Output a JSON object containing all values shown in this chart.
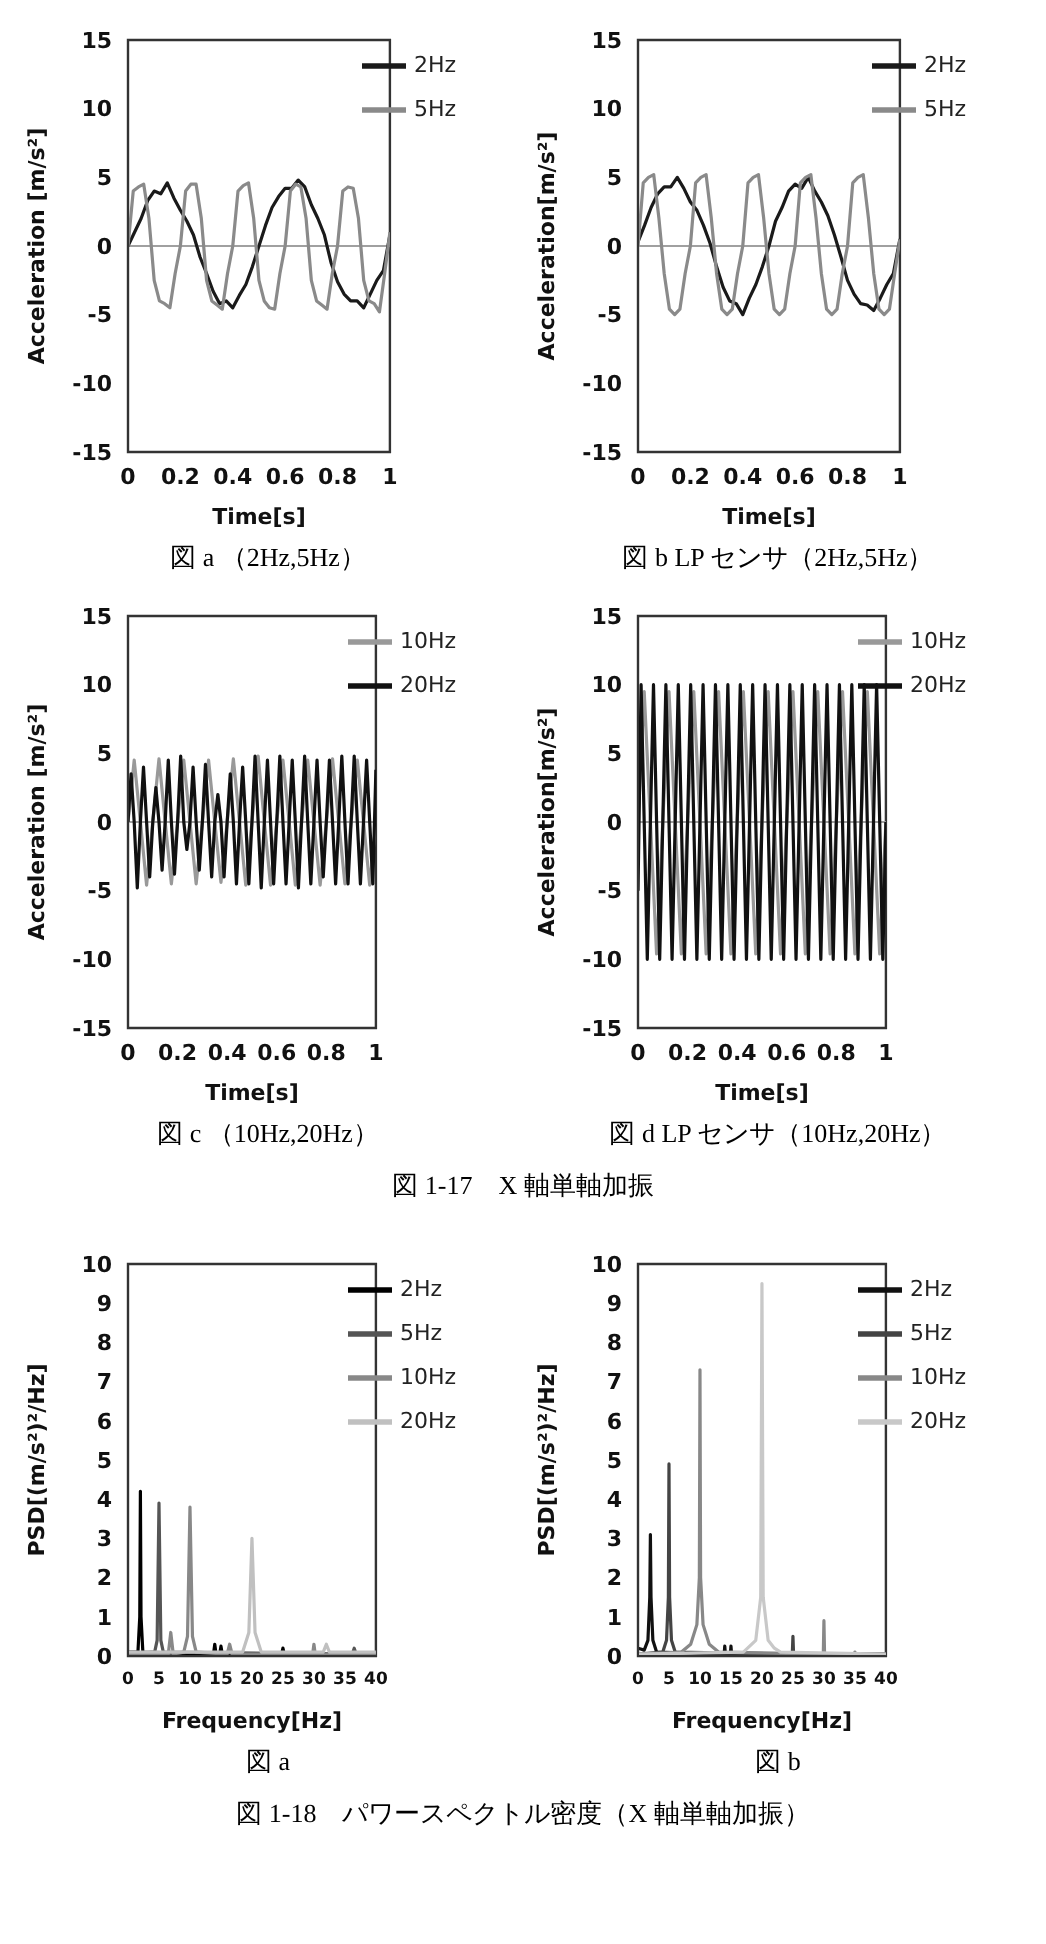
{
  "chart_data": [
    {
      "type": "line",
      "title": "図 a （2Hz,5Hz）",
      "xlabel": "Time[s]",
      "ylabel": "Acceleration [m/s²]",
      "xlim": [
        0,
        1
      ],
      "xticks": [
        0,
        0.2,
        0.4,
        0.6,
        0.8,
        1
      ],
      "ylim": [
        -15,
        15
      ],
      "yticks": [
        -15,
        -10,
        -5,
        0,
        5,
        10,
        15
      ],
      "legend": "top right",
      "ref_lines": [
        {
          "axis": "y",
          "value": 0,
          "color": "#a0a0a0"
        }
      ],
      "x": [
        0,
        0.025,
        0.05,
        0.075,
        0.1,
        0.125,
        0.15,
        0.175,
        0.2,
        0.225,
        0.25,
        0.275,
        0.3,
        0.325,
        0.35,
        0.375,
        0.4,
        0.425,
        0.45,
        0.475,
        0.5,
        0.525,
        0.55,
        0.575,
        0.6,
        0.625,
        0.65,
        0.675,
        0.7,
        0.725,
        0.75,
        0.775,
        0.8,
        0.825,
        0.85,
        0.875,
        0.9,
        0.925,
        0.95,
        0.975,
        1
      ],
      "series": [
        {
          "name": "2Hz",
          "color": "#1a1a1a",
          "values": [
            0,
            1,
            2,
            3.3,
            4,
            3.8,
            4.6,
            3.5,
            2.6,
            1.8,
            0.8,
            -0.8,
            -2,
            -3.3,
            -4.2,
            -4,
            -4.5,
            -3.6,
            -2.8,
            -1.5,
            0,
            1.5,
            2.8,
            3.6,
            4.2,
            4.2,
            4.8,
            4.3,
            3,
            2,
            0.8,
            -1.2,
            -2.6,
            -3.5,
            -4,
            -4,
            -4.5,
            -3.5,
            -2.5,
            -1.8,
            0.8
          ]
        },
        {
          "name": "5Hz",
          "color": "#8a8a8a",
          "x": [
            0,
            0.02,
            0.04,
            0.06,
            0.08,
            0.1,
            0.12,
            0.14,
            0.16,
            0.18,
            0.2,
            0.22,
            0.24,
            0.26,
            0.28,
            0.3,
            0.32,
            0.34,
            0.36,
            0.38,
            0.4,
            0.42,
            0.44,
            0.46,
            0.48,
            0.5,
            0.52,
            0.54,
            0.56,
            0.58,
            0.6,
            0.62,
            0.64,
            0.66,
            0.68,
            0.7,
            0.72,
            0.74,
            0.76,
            0.78,
            0.8,
            0.82,
            0.84,
            0.86,
            0.88,
            0.9,
            0.92,
            0.94,
            0.96,
            0.98,
            1
          ],
          "values": [
            0,
            4,
            4.3,
            4.5,
            2,
            -2.5,
            -4,
            -4.2,
            -4.5,
            -2,
            0,
            4,
            4.5,
            4.5,
            2,
            -2.5,
            -4,
            -4.3,
            -4.6,
            -2,
            0,
            4,
            4.4,
            4.6,
            2,
            -2.5,
            -4,
            -4.5,
            -4.6,
            -2,
            0,
            4,
            4.5,
            4.3,
            2,
            -2.5,
            -4,
            -4.3,
            -4.6,
            -2,
            0,
            4,
            4.3,
            4.2,
            2,
            -2.5,
            -4,
            -4.2,
            -4.8,
            -2,
            1
          ]
        }
      ]
    },
    {
      "type": "line",
      "title": "図 b LP センサ（2Hz,5Hz）",
      "xlabel": "Time[s]",
      "ylabel": "Acceleration[m/s²]",
      "xlim": [
        0,
        1
      ],
      "xticks": [
        0,
        0.2,
        0.4,
        0.6,
        0.8,
        1
      ],
      "ylim": [
        -15,
        15
      ],
      "yticks": [
        -15,
        -10,
        -5,
        0,
        5,
        10,
        15
      ],
      "legend": "top right",
      "ref_lines": [
        {
          "axis": "y",
          "value": 0,
          "color": "#a0a0a0"
        }
      ],
      "x": [
        0,
        0.025,
        0.05,
        0.075,
        0.1,
        0.125,
        0.15,
        0.175,
        0.2,
        0.225,
        0.25,
        0.275,
        0.3,
        0.325,
        0.35,
        0.375,
        0.4,
        0.425,
        0.45,
        0.475,
        0.5,
        0.525,
        0.55,
        0.575,
        0.6,
        0.625,
        0.65,
        0.675,
        0.7,
        0.725,
        0.75,
        0.775,
        0.8,
        0.825,
        0.85,
        0.875,
        0.9,
        0.925,
        0.95,
        0.975,
        1
      ],
      "series": [
        {
          "name": "2Hz",
          "color": "#1a1a1a",
          "values": [
            0.3,
            1.5,
            2.8,
            3.8,
            4.3,
            4.3,
            5,
            4.2,
            3.2,
            2.6,
            1.5,
            0.2,
            -1.5,
            -3,
            -4,
            -4.2,
            -5,
            -3.8,
            -2.8,
            -1.5,
            0,
            1.8,
            2.8,
            4,
            4.5,
            4.2,
            5,
            4,
            3.2,
            2.2,
            0.8,
            -0.8,
            -2.5,
            -3.5,
            -4.2,
            -4.3,
            -4.7,
            -3.8,
            -2.8,
            -2,
            0.5
          ]
        },
        {
          "name": "5Hz",
          "color": "#8a8a8a",
          "x": [
            0,
            0.02,
            0.04,
            0.06,
            0.08,
            0.1,
            0.12,
            0.14,
            0.16,
            0.18,
            0.2,
            0.22,
            0.24,
            0.26,
            0.28,
            0.3,
            0.32,
            0.34,
            0.36,
            0.38,
            0.4,
            0.42,
            0.44,
            0.46,
            0.48,
            0.5,
            0.52,
            0.54,
            0.56,
            0.58,
            0.6,
            0.62,
            0.64,
            0.66,
            0.68,
            0.7,
            0.72,
            0.74,
            0.76,
            0.78,
            0.8,
            0.82,
            0.84,
            0.86,
            0.88,
            0.9,
            0.92,
            0.94,
            0.96,
            0.98,
            1
          ],
          "values": [
            0,
            4.6,
            5,
            5.2,
            2,
            -2,
            -4.6,
            -5,
            -4.6,
            -2,
            0,
            4.6,
            5,
            5.2,
            2,
            -2,
            -4.6,
            -5,
            -4.6,
            -2,
            0,
            4.6,
            5,
            5.2,
            2,
            -2,
            -4.6,
            -5,
            -4.6,
            -2,
            0,
            4.6,
            5,
            5.2,
            2,
            -2,
            -4.6,
            -5,
            -4.6,
            -2,
            0,
            4.6,
            5,
            5.2,
            2,
            -2,
            -4.6,
            -5,
            -4.6,
            -2,
            0.5
          ]
        }
      ]
    },
    {
      "type": "line",
      "title": "図 c （10Hz,20Hz）",
      "xlabel": "Time[s]",
      "ylabel": "Acceleration [m/s²]",
      "xlim": [
        0,
        1
      ],
      "xticks": [
        0,
        0.2,
        0.4,
        0.6,
        0.8,
        1
      ],
      "ylim": [
        -15,
        15
      ],
      "yticks": [
        -15,
        -10,
        -5,
        0,
        5,
        10,
        15
      ],
      "legend": "top right",
      "ref_lines": [
        {
          "axis": "y",
          "value": 0,
          "color": "#a0a0a0"
        }
      ],
      "annotations": [
        "図 1-17　X 軸単軸加振"
      ],
      "x": [
        0,
        0.025,
        0.05,
        0.075,
        0.1,
        0.125,
        0.15,
        0.175,
        0.2,
        0.225,
        0.25,
        0.275,
        0.3,
        0.325,
        0.35,
        0.375,
        0.4,
        0.425,
        0.45,
        0.475,
        0.5,
        0.525,
        0.55,
        0.575,
        0.6,
        0.625,
        0.65,
        0.675,
        0.7,
        0.725,
        0.75,
        0.775,
        0.8,
        0.825,
        0.85,
        0.875,
        0.9,
        0.925,
        0.95,
        0.975,
        1
      ],
      "series": [
        {
          "name": "10Hz",
          "color": "#999999",
          "values": [
            0,
            4.5,
            0,
            -4.6,
            0,
            4.6,
            0,
            -4.5,
            0,
            4.5,
            0,
            -4.5,
            0,
            4.5,
            0,
            -4.4,
            0,
            4.6,
            0,
            -4.6,
            0,
            4.8,
            0,
            -4.6,
            0,
            4.5,
            0,
            -4.6,
            0,
            4.5,
            0,
            -4.6,
            0,
            4.6,
            0,
            -4.5,
            0,
            4.5,
            0,
            -4.6,
            0
          ]
        },
        {
          "name": "20Hz",
          "color": "#111111",
          "x": [
            0,
            0.0125,
            0.025,
            0.0375,
            0.05,
            0.0625,
            0.075,
            0.0875,
            0.1,
            0.1125,
            0.125,
            0.1375,
            0.15,
            0.1625,
            0.175,
            0.1875,
            0.2,
            0.2125,
            0.225,
            0.2375,
            0.25,
            0.2625,
            0.275,
            0.2875,
            0.3,
            0.3125,
            0.325,
            0.3375,
            0.35,
            0.3625,
            0.375,
            0.3875,
            0.4,
            0.4125,
            0.425,
            0.4375,
            0.45,
            0.4625,
            0.475,
            0.4875,
            0.5,
            0.5125,
            0.525,
            0.5375,
            0.55,
            0.5625,
            0.575,
            0.5875,
            0.6,
            0.6125,
            0.625,
            0.6375,
            0.65,
            0.6625,
            0.675,
            0.6875,
            0.7,
            0.7125,
            0.725,
            0.7375,
            0.75,
            0.7625,
            0.775,
            0.7875,
            0.8,
            0.8125,
            0.825,
            0.8375,
            0.85,
            0.8625,
            0.875,
            0.8875,
            0.9,
            0.9125,
            0.925,
            0.9375,
            0.95,
            0.9625,
            0.975,
            0.9875,
            1
          ],
          "values": [
            0,
            3.5,
            0,
            -4.8,
            0,
            4,
            0,
            -4,
            0,
            2.5,
            0,
            -3.5,
            0,
            4.5,
            0,
            -3.8,
            0,
            4.8,
            0,
            -2,
            0,
            4,
            0,
            -3.5,
            0,
            4.2,
            0,
            -4,
            0,
            2,
            0,
            -4,
            0,
            3.5,
            0,
            -4.5,
            0,
            4,
            0,
            -4.5,
            0,
            4.8,
            0,
            -4.8,
            0,
            4.5,
            0,
            -4.5,
            0,
            4.8,
            0,
            -4.5,
            0,
            4.5,
            0,
            -4.8,
            0,
            4.8,
            0,
            -4.5,
            0,
            4.5,
            0,
            -4,
            0,
            4.5,
            0,
            -4.5,
            0,
            4.8,
            0,
            -4.5,
            0,
            4.8,
            0,
            -4.5,
            0,
            4.5,
            0,
            -4.5,
            3.8
          ]
        }
      ]
    },
    {
      "type": "line",
      "title": "図 d LP センサ（10Hz,20Hz）",
      "xlabel": "Time[s]",
      "ylabel": "Acceleration[m/s²]",
      "xlim": [
        0,
        1
      ],
      "xticks": [
        0,
        0.2,
        0.4,
        0.6,
        0.8,
        1
      ],
      "ylim": [
        -15,
        15
      ],
      "yticks": [
        -15,
        -10,
        -5,
        0,
        5,
        10,
        15
      ],
      "legend": "top right",
      "ref_lines": [
        {
          "axis": "y",
          "value": 0,
          "color": "#a0a0a0"
        }
      ],
      "x": [
        0,
        0.025,
        0.05,
        0.075,
        0.1,
        0.125,
        0.15,
        0.175,
        0.2,
        0.225,
        0.25,
        0.275,
        0.3,
        0.325,
        0.35,
        0.375,
        0.4,
        0.425,
        0.45,
        0.475,
        0.5,
        0.525,
        0.55,
        0.575,
        0.6,
        0.625,
        0.65,
        0.675,
        0.7,
        0.725,
        0.75,
        0.775,
        0.8,
        0.825,
        0.85,
        0.875,
        0.9,
        0.925,
        0.95,
        0.975,
        1
      ],
      "series": [
        {
          "name": "10Hz",
          "color": "#999999",
          "values": [
            0,
            9.5,
            0,
            -9.6,
            0,
            9.5,
            0,
            -9.6,
            0,
            9.5,
            0,
            -9.6,
            0,
            9.5,
            0,
            -9.6,
            0,
            9.5,
            0,
            -9.6,
            0,
            9.5,
            0,
            -9.6,
            0,
            9.5,
            0,
            -9.6,
            0,
            9.5,
            0,
            -9.6,
            0,
            9.5,
            0,
            -9.6,
            0,
            9.5,
            0,
            -9.6,
            0
          ]
        },
        {
          "name": "20Hz",
          "color": "#111111",
          "x": [
            0,
            0.0125,
            0.025,
            0.0375,
            0.05,
            0.0625,
            0.075,
            0.0875,
            0.1,
            0.1125,
            0.125,
            0.1375,
            0.15,
            0.1625,
            0.175,
            0.1875,
            0.2,
            0.2125,
            0.225,
            0.2375,
            0.25,
            0.2625,
            0.275,
            0.2875,
            0.3,
            0.3125,
            0.325,
            0.3375,
            0.35,
            0.3625,
            0.375,
            0.3875,
            0.4,
            0.4125,
            0.425,
            0.4375,
            0.45,
            0.4625,
            0.475,
            0.4875,
            0.5,
            0.5125,
            0.525,
            0.5375,
            0.55,
            0.5625,
            0.575,
            0.5875,
            0.6,
            0.6125,
            0.625,
            0.6375,
            0.65,
            0.6625,
            0.675,
            0.6875,
            0.7,
            0.7125,
            0.725,
            0.7375,
            0.75,
            0.7625,
            0.775,
            0.7875,
            0.8,
            0.8125,
            0.825,
            0.8375,
            0.85,
            0.8625,
            0.875,
            0.8875,
            0.9,
            0.9125,
            0.925,
            0.9375,
            0.95,
            0.9625,
            0.975,
            0.9875,
            1
          ],
          "values": [
            -5,
            10,
            0,
            -10,
            0,
            10,
            0,
            -10,
            0,
            10,
            0,
            -10,
            0,
            10,
            0,
            -10,
            0,
            10,
            0,
            -10,
            0,
            10,
            0,
            -10,
            0,
            10,
            0,
            -10,
            0,
            10,
            0,
            -10,
            0,
            10,
            0,
            -10,
            0,
            10,
            0,
            -10,
            0,
            10,
            0,
            -10,
            0,
            10,
            0,
            -10,
            0,
            10,
            0,
            -10,
            0,
            10,
            0,
            -10,
            0,
            10,
            0,
            -10,
            0,
            10,
            0,
            -10,
            0,
            10,
            0,
            -10,
            0,
            10,
            0,
            -10,
            0,
            10,
            0,
            -10,
            0,
            10,
            0,
            -10,
            0
          ]
        }
      ]
    },
    {
      "type": "line",
      "title": "図 a",
      "xlabel": "Frequency[Hz]",
      "ylabel": "PSD[(m/s²)²/Hz]",
      "xlim": [
        0,
        40
      ],
      "xticks": [
        0,
        5,
        10,
        15,
        20,
        25,
        30,
        35,
        40
      ],
      "ylim": [
        0,
        10
      ],
      "yticks": [
        0,
        1,
        2,
        3,
        4,
        5,
        6,
        7,
        8,
        9,
        10
      ],
      "legend": "top right",
      "annotations": [
        "図 1-18　パワースペクトル密度（X 軸単軸加振）"
      ],
      "series": [
        {
          "name": "2Hz",
          "color": "#000000",
          "x": [
            0,
            1.6,
            1.9,
            2,
            2.1,
            2.4,
            13.8,
            14,
            14.2,
            14.8,
            15,
            15.2,
            24.8,
            25,
            25.2,
            40
          ],
          "values": [
            0.1,
            0.1,
            1,
            4.2,
            1,
            0.1,
            0.05,
            0.3,
            0.05,
            0.05,
            0.25,
            0.05,
            0.05,
            0.2,
            0.05,
            0.05
          ]
        },
        {
          "name": "5Hz",
          "color": "#555555",
          "x": [
            0,
            4.3,
            4.7,
            5,
            5.3,
            5.7,
            36.2,
            36.5,
            36.8,
            40
          ],
          "values": [
            0.05,
            0.1,
            0.4,
            3.9,
            0.4,
            0.1,
            0.05,
            0.2,
            0.05,
            0.05
          ]
        },
        {
          "name": "10Hz",
          "color": "#888888",
          "x": [
            0,
            6.5,
            6.9,
            7.3,
            9,
            9.6,
            10,
            10.4,
            11,
            16,
            16.4,
            16.8,
            29.8,
            30,
            30.2,
            40
          ],
          "values": [
            0.05,
            0.05,
            0.6,
            0.05,
            0.1,
            0.5,
            3.8,
            0.5,
            0.1,
            0.05,
            0.3,
            0.05,
            0.05,
            0.3,
            0.05,
            0.05
          ]
        },
        {
          "name": "20Hz",
          "color": "#c0c0c0",
          "x": [
            0,
            18.5,
            19.5,
            20,
            20.5,
            21.5,
            31.5,
            32,
            32.5,
            40
          ],
          "values": [
            0.1,
            0.1,
            0.6,
            3,
            0.6,
            0.1,
            0.1,
            0.3,
            0.1,
            0.1
          ]
        }
      ]
    },
    {
      "type": "line",
      "title": "図 b",
      "xlabel": "Frequency[Hz]",
      "ylabel": "PSD[(m/s²)²/Hz]",
      "xlim": [
        0,
        40
      ],
      "xticks": [
        0,
        5,
        10,
        15,
        20,
        25,
        30,
        35,
        40
      ],
      "ylim": [
        0,
        10
      ],
      "yticks": [
        0,
        1,
        2,
        3,
        4,
        5,
        6,
        7,
        8,
        9,
        10
      ],
      "legend": "top right",
      "series": [
        {
          "name": "2Hz",
          "color": "#111111",
          "x": [
            0,
            1,
            1.6,
            1.9,
            2,
            2.1,
            2.4,
            3,
            13.9,
            14,
            14.1,
            14.9,
            15,
            15.1,
            40
          ],
          "values": [
            0.2,
            0.15,
            0.4,
            1.5,
            3.1,
            1.5,
            0.4,
            0.1,
            0.05,
            0.25,
            0.05,
            0.05,
            0.25,
            0.05,
            0.05
          ]
        },
        {
          "name": "5Hz",
          "color": "#444444",
          "x": [
            0,
            4,
            4.6,
            4.9,
            5,
            5.1,
            5.4,
            6,
            24.9,
            25,
            25.1,
            40
          ],
          "values": [
            0.05,
            0.1,
            0.4,
            1.5,
            4.9,
            1.5,
            0.4,
            0.1,
            0.05,
            0.5,
            0.05,
            0.05
          ]
        },
        {
          "name": "10Hz",
          "color": "#888888",
          "x": [
            0,
            7,
            8.5,
            9.5,
            9.9,
            10,
            10.1,
            10.5,
            11.5,
            13,
            29.9,
            30,
            30.1,
            34.9,
            35,
            35.1,
            40
          ],
          "values": [
            0.05,
            0.1,
            0.3,
            0.8,
            2,
            7.3,
            2,
            0.8,
            0.3,
            0.1,
            0.05,
            0.9,
            0.05,
            0.05,
            0.1,
            0.05,
            0.05
          ]
        },
        {
          "name": "20Hz",
          "color": "#c8c8c8",
          "x": [
            0,
            17,
            19,
            19.8,
            20,
            20.2,
            21,
            22,
            23,
            40
          ],
          "values": [
            0.05,
            0.1,
            0.4,
            1.5,
            9.5,
            1.5,
            0.4,
            0.2,
            0.1,
            0.05
          ]
        }
      ]
    }
  ]
}
